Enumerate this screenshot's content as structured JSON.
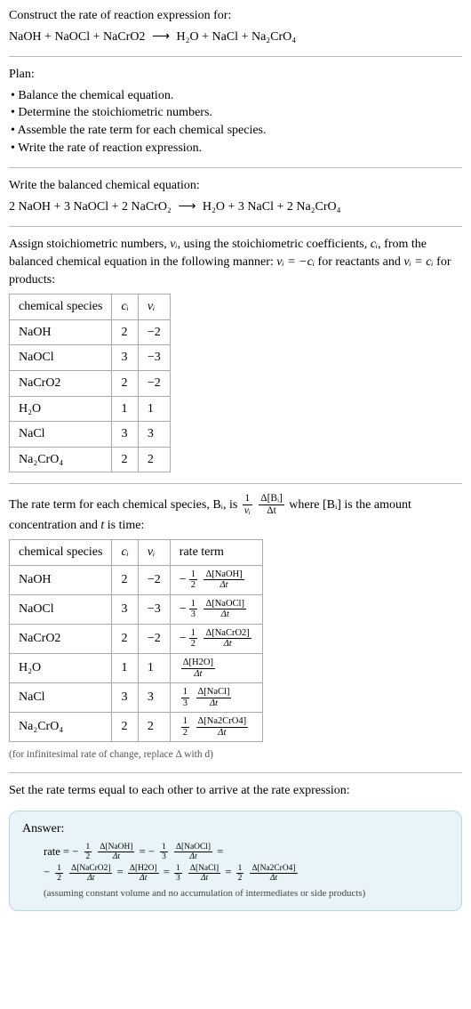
{
  "intro": {
    "prompt": "Construct the rate of reaction expression for:",
    "equation_lhs": "NaOH + NaOCl + NaCrO2",
    "arrow": "⟶",
    "equation_rhs": "H₂O + NaCl + Na₂CrO₄"
  },
  "plan": {
    "title": "Plan:",
    "items": [
      "• Balance the chemical equation.",
      "• Determine the stoichiometric numbers.",
      "• Assemble the rate term for each chemical species.",
      "• Write the rate of reaction expression."
    ]
  },
  "balanced": {
    "prompt": "Write the balanced chemical equation:",
    "lhs": "2 NaOH + 3 NaOCl + 2 NaCrO₂",
    "arrow": "⟶",
    "rhs": "H₂O + 3 NaCl + 2 Na₂CrO₄"
  },
  "stoich": {
    "text1": "Assign stoichiometric numbers, ",
    "nu_i": "νᵢ",
    "text2": ", using the stoichiometric coefficients, ",
    "c_i": "cᵢ",
    "text3": ", from the balanced chemical equation in the following manner: ",
    "rel1": "νᵢ = −cᵢ",
    "text4": " for reactants and ",
    "rel2": "νᵢ = cᵢ",
    "text5": " for products:"
  },
  "table1": {
    "headers": [
      "chemical species",
      "cᵢ",
      "νᵢ"
    ],
    "rows": [
      [
        "NaOH",
        "2",
        "−2"
      ],
      [
        "NaOCl",
        "3",
        "−3"
      ],
      [
        "NaCrO2",
        "2",
        "−2"
      ],
      [
        "H₂O",
        "1",
        "1"
      ],
      [
        "NaCl",
        "3",
        "3"
      ],
      [
        "Na₂CrO₄",
        "2",
        "2"
      ]
    ]
  },
  "rateterm": {
    "text1": "The rate term for each chemical species, ",
    "B_i": "Bᵢ",
    "text2": ", is ",
    "fnum": "1",
    "fden": "νᵢ",
    "gnum": "Δ[Bᵢ]",
    "gden": "Δt",
    "text3": " where [Bᵢ] is the amount concentration and ",
    "t": "t",
    "text4": " is time:"
  },
  "table2": {
    "headers": [
      "chemical species",
      "cᵢ",
      "νᵢ",
      "rate term"
    ],
    "rows": [
      {
        "sp": "NaOH",
        "c": "2",
        "v": "−2",
        "sign": "−",
        "num": "1",
        "den": "2",
        "dnum": "Δ[NaOH]",
        "dden": "Δt"
      },
      {
        "sp": "NaOCl",
        "c": "3",
        "v": "−3",
        "sign": "−",
        "num": "1",
        "den": "3",
        "dnum": "Δ[NaOCl]",
        "dden": "Δt"
      },
      {
        "sp": "NaCrO2",
        "c": "2",
        "v": "−2",
        "sign": "−",
        "num": "1",
        "den": "2",
        "dnum": "Δ[NaCrO2]",
        "dden": "Δt"
      },
      {
        "sp": "H₂O",
        "c": "1",
        "v": "1",
        "sign": "",
        "num": "",
        "den": "",
        "dnum": "Δ[H2O]",
        "dden": "Δt"
      },
      {
        "sp": "NaCl",
        "c": "3",
        "v": "3",
        "sign": "",
        "num": "1",
        "den": "3",
        "dnum": "Δ[NaCl]",
        "dden": "Δt"
      },
      {
        "sp": "Na₂CrO₄",
        "c": "2",
        "v": "2",
        "sign": "",
        "num": "1",
        "den": "2",
        "dnum": "Δ[Na2CrO4]",
        "dden": "Δt"
      }
    ],
    "note": "(for infinitesimal rate of change, replace Δ with d)"
  },
  "set_equal": "Set the rate terms equal to each other to arrive at the rate expression:",
  "answer": {
    "label": "Answer:",
    "terms": [
      {
        "lead": "rate = ",
        "sign": "−",
        "num": "1",
        "den": "2",
        "dnum": "Δ[NaOH]",
        "dden": "Δt",
        "eq": " = "
      },
      {
        "lead": "",
        "sign": "−",
        "num": "1",
        "den": "3",
        "dnum": "Δ[NaOCl]",
        "dden": "Δt",
        "eq": " ="
      },
      {
        "lead": "",
        "sign": "−",
        "num": "1",
        "den": "2",
        "dnum": "Δ[NaCrO2]",
        "dden": "Δt",
        "eq": " = "
      },
      {
        "lead": "",
        "sign": "",
        "num": "",
        "den": "",
        "dnum": "Δ[H2O]",
        "dden": "Δt",
        "eq": " = "
      },
      {
        "lead": "",
        "sign": "",
        "num": "1",
        "den": "3",
        "dnum": "Δ[NaCl]",
        "dden": "Δt",
        "eq": " = "
      },
      {
        "lead": "",
        "sign": "",
        "num": "1",
        "den": "2",
        "dnum": "Δ[Na2CrO4]",
        "dden": "Δt",
        "eq": ""
      }
    ],
    "line1_count": 2,
    "line2_count": 4,
    "note": "(assuming constant volume and no accumulation of intermediates or side products)"
  }
}
